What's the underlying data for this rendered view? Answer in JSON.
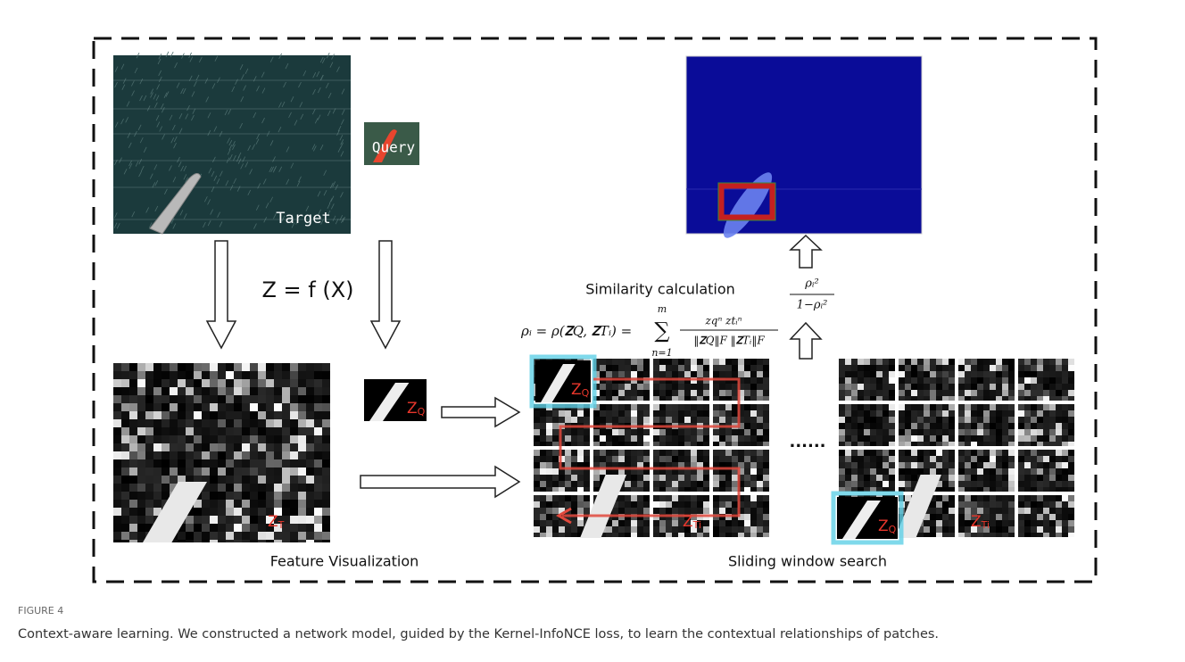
{
  "figure": {
    "target_label": "Target",
    "query_label": "Query",
    "mapping": "Z = f (X)",
    "similarity_title": "Similarity calculation",
    "formula": {
      "lhs": "ρᵢ = ρ(𝐙Q, 𝐙Tᵢ) =",
      "sum_top": "m",
      "sum_symbol": "∑",
      "sum_bottom": "n=1",
      "numerator": "zqⁿ ztᵢⁿ",
      "denominator": "‖𝐙Q‖F ‖𝐙Tᵢ‖F"
    },
    "ratio": {
      "numerator": "ρᵢ²",
      "denominator": "1−ρᵢ²"
    },
    "patch_labels": [
      {
        "base": "Z",
        "sub": "Q"
      },
      {
        "base": "Z",
        "sub": "T"
      },
      {
        "base": "Z",
        "sub": "Q"
      },
      {
        "base": "Z",
        "sub": "Ti"
      },
      {
        "base": "Z",
        "sub": "Q"
      },
      {
        "base": "Z",
        "sub": "Ti"
      }
    ],
    "dots": "......",
    "section_labels": [
      "Feature Visualization",
      "Sliding window search"
    ],
    "caption": {
      "label": "FIGURE 4",
      "text": "Context-aware learning. We constructed a network model, guided by the Kernel-InfoNCE loss, to learn the contextual relationships of patches."
    }
  }
}
